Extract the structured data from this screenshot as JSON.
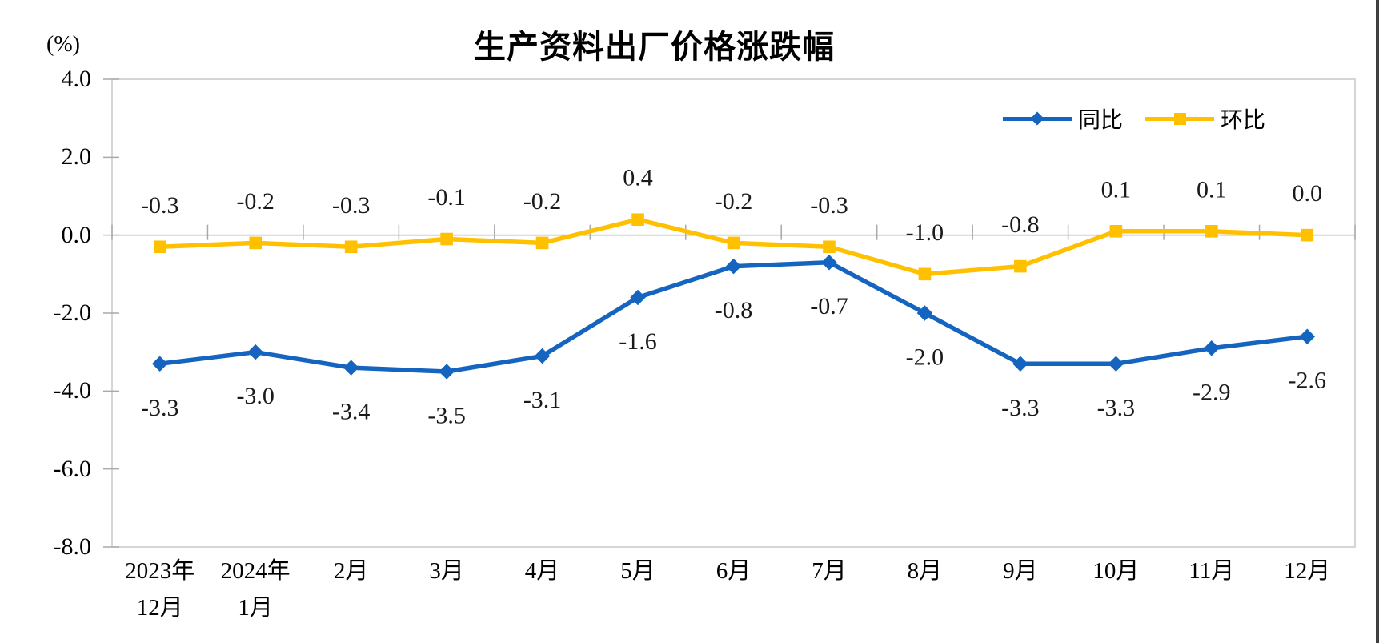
{
  "chart_data": {
    "type": "line",
    "title": "生产资料出厂价格涨跌幅",
    "unit_label": "(%)",
    "categories": [
      "2023年12月",
      "2024年1月",
      "2月",
      "3月",
      "4月",
      "5月",
      "6月",
      "7月",
      "8月",
      "9月",
      "10月",
      "11月",
      "12月"
    ],
    "x_tick_lines": [
      [
        "2023年",
        "12月"
      ],
      [
        "2024年",
        "1月"
      ],
      [
        "2月"
      ],
      [
        "3月"
      ],
      [
        "4月"
      ],
      [
        "5月"
      ],
      [
        "6月"
      ],
      [
        "7月"
      ],
      [
        "8月"
      ],
      [
        "9月"
      ],
      [
        "10月"
      ],
      [
        "11月"
      ],
      [
        "12月"
      ]
    ],
    "y_axis": {
      "min": -8.0,
      "max": 4.0,
      "step": 2.0,
      "tick_labels": [
        "4.0",
        "2.0",
        "0.0",
        "-2.0",
        "-4.0",
        "-6.0",
        "-8.0"
      ],
      "tick_values": [
        4,
        2,
        0,
        -2,
        -4,
        -6,
        -8
      ]
    },
    "grid": "zero-line-only",
    "legend_position": "top-right-inside",
    "series": [
      {
        "name": "同比",
        "color": "#1565C0",
        "marker": "diamond",
        "label_position": "below",
        "values": [
          -3.3,
          -3.0,
          -3.4,
          -3.5,
          -3.1,
          -1.6,
          -0.8,
          -0.7,
          -2.0,
          -3.3,
          -3.3,
          -2.9,
          -2.6
        ],
        "labels": [
          "-3.3",
          "-3.0",
          "-3.4",
          "-3.5",
          "-3.1",
          "-1.6",
          "-0.8",
          "-0.7",
          "-2.0",
          "-3.3",
          "-3.3",
          "-2.9",
          "-2.6"
        ]
      },
      {
        "name": "环比",
        "color": "#FFC000",
        "marker": "square",
        "label_position": "above",
        "values": [
          -0.3,
          -0.2,
          -0.3,
          -0.1,
          -0.2,
          0.4,
          -0.2,
          -0.3,
          -1.0,
          -0.8,
          0.1,
          0.1,
          0.0
        ],
        "labels": [
          "-0.3",
          "-0.2",
          "-0.3",
          "-0.1",
          "-0.2",
          "0.4",
          "-0.2",
          "-0.3",
          "-1.0",
          "-0.8",
          "0.1",
          "0.1",
          "0.0"
        ]
      }
    ]
  },
  "colors": {
    "plot_border": "#C9C9C9",
    "axis_line": "#A9A9A9",
    "label_text": "#1a1a1a",
    "tongbi_blue": "#1565C0",
    "huanbi_yellow": "#FFC000",
    "page_edge": "#3f3f3f"
  }
}
